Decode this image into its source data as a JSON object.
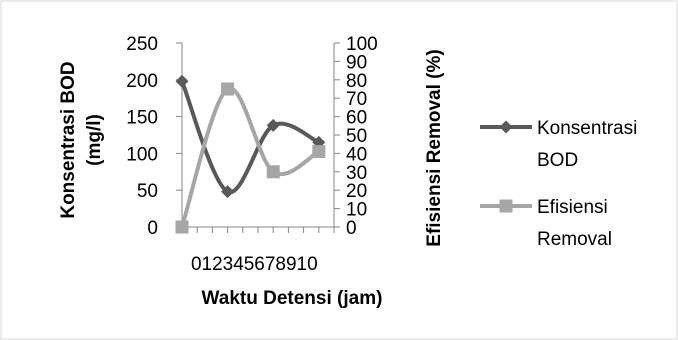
{
  "chart_data": {
    "type": "line",
    "xlabel": "Waktu Detensi (jam)",
    "ylabel_left": "Konsentrasi BOD (mg/l)",
    "ylabel_left_lines": [
      "Konsentrasi BOD",
      "(mg/l)"
    ],
    "ylabel_right": "Efisiensi Removal (%)",
    "x_ticks": [
      "0",
      "1",
      "2",
      "3",
      "4",
      "5",
      "6",
      "7",
      "8",
      "9",
      "10"
    ],
    "xlim": [
      0,
      10
    ],
    "y_left_ticks": [
      "0",
      "50",
      "100",
      "150",
      "200",
      "250"
    ],
    "ylim_left": [
      0,
      250
    ],
    "y_right_ticks": [
      "0",
      "10",
      "20",
      "30",
      "40",
      "50",
      "60",
      "70",
      "80",
      "90",
      "100"
    ],
    "ylim_right": [
      0,
      100
    ],
    "series": [
      {
        "name": "Konsentrasi BOD",
        "legend_lines": [
          "Konsentrasi",
          "BOD"
        ],
        "axis": "left",
        "marker": "diamond",
        "color": "#595959",
        "x": [
          0,
          3,
          6,
          9
        ],
        "y": [
          198,
          48,
          138,
          115
        ]
      },
      {
        "name": "Efisiensi Removal",
        "legend_lines": [
          "Efisiensi",
          "Removal"
        ],
        "axis": "right",
        "marker": "square",
        "color": "#a6a6a6",
        "x": [
          0,
          3,
          6,
          9
        ],
        "y": [
          0,
          75,
          30,
          41
        ]
      }
    ],
    "grid": false,
    "legend_position": "right"
  }
}
